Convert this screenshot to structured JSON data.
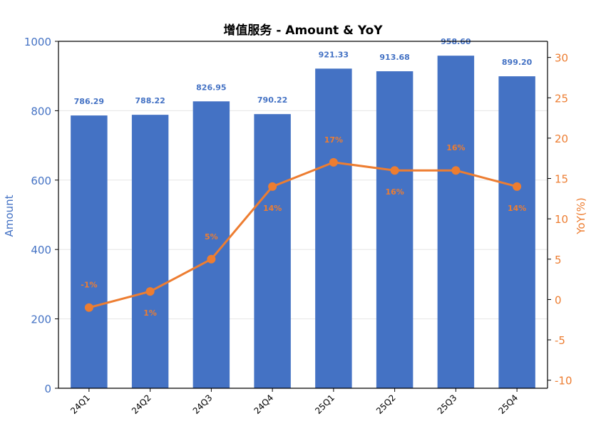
{
  "chart_data": {
    "type": "bar",
    "title": "增值服务 - Amount & YoY",
    "categories": [
      "24Q1",
      "24Q2",
      "24Q3",
      "24Q4",
      "25Q1",
      "25Q2",
      "25Q3",
      "25Q4"
    ],
    "series": [
      {
        "name": "Amount",
        "type": "bar",
        "axis": "left",
        "values": [
          786.29,
          788.22,
          826.95,
          790.22,
          921.33,
          913.68,
          958.6,
          899.2
        ],
        "labels": [
          "786.29",
          "788.22",
          "826.95",
          "790.22",
          "921.33",
          "913.68",
          "958.60",
          "899.20"
        ],
        "color": "#4472C4"
      },
      {
        "name": "YoY(%)",
        "type": "line",
        "axis": "right",
        "values": [
          -1,
          1,
          5,
          14,
          17,
          16,
          16,
          14
        ],
        "labels": [
          "-1%",
          "1%",
          "5%",
          "14%",
          "17%",
          "16%",
          "16%",
          "14%"
        ],
        "color": "#ED7D31"
      }
    ],
    "ylabel": "Amount",
    "y2label": "YoY(%)",
    "ylim": [
      0,
      1000
    ],
    "y2lim": [
      -11,
      32
    ],
    "yticks": [
      "0",
      "200",
      "400",
      "600",
      "800",
      "1000"
    ],
    "y2ticks": [
      "-10",
      "-5",
      "0",
      "5",
      "10",
      "15",
      "20",
      "25",
      "30"
    ],
    "grid": true,
    "legend": "none"
  }
}
